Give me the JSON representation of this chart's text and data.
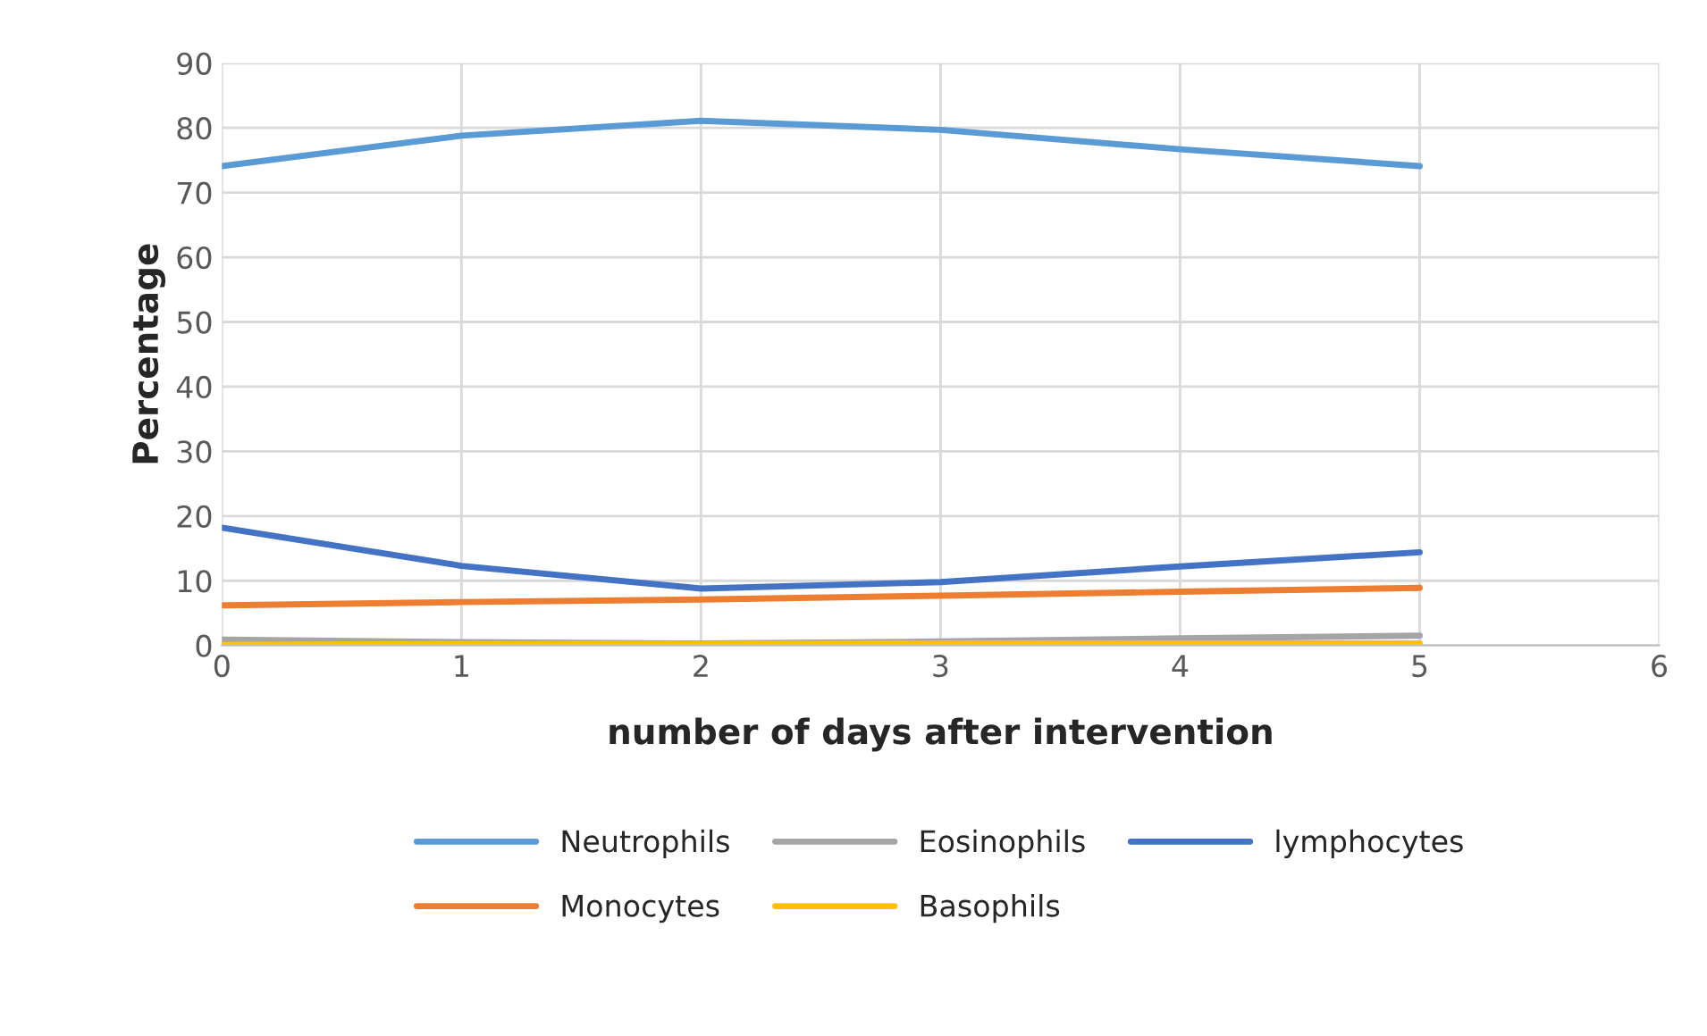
{
  "chart_data": {
    "type": "line",
    "xlabel": "number of days after intervention",
    "ylabel": "Percentage",
    "x": [
      0,
      1,
      2,
      3,
      4,
      5
    ],
    "series": [
      {
        "name": "Neutrophils",
        "color": "#5b9bd5",
        "values": [
          74.1,
          78.8,
          81.1,
          79.7,
          76.7,
          74.1
        ]
      },
      {
        "name": "Monocytes",
        "color": "#ed7d31",
        "values": [
          6.2,
          6.7,
          7.1,
          7.7,
          8.3,
          8.9
        ]
      },
      {
        "name": "Eosinophils",
        "color": "#a5a5a5",
        "values": [
          0.9,
          0.5,
          0.3,
          0.6,
          1.1,
          1.5
        ]
      },
      {
        "name": "Basophils",
        "color": "#ffc000",
        "values": [
          0.1,
          0.2,
          0.2,
          0.3,
          0.3,
          0.3
        ]
      },
      {
        "name": "lymphocytes",
        "color": "#4472c4",
        "values": [
          18.2,
          12.3,
          8.8,
          9.8,
          12.2,
          14.4
        ]
      }
    ],
    "xlim": [
      0,
      6
    ],
    "xticks": [
      0,
      1,
      2,
      3,
      4,
      5,
      6
    ],
    "ylim": [
      0,
      90
    ],
    "yticks": [
      0,
      10,
      20,
      30,
      40,
      50,
      60,
      70,
      80,
      90
    ],
    "grid": true,
    "legend": "bottom",
    "marker": "none",
    "line_style": "solid"
  }
}
